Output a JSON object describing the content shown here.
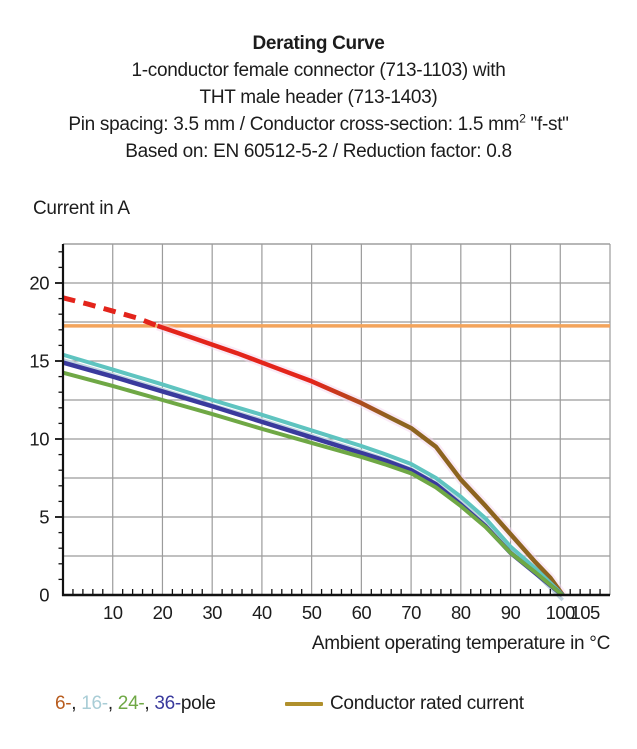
{
  "title": {
    "line1": "Derating Curve",
    "line2": "1-conductor female connector (713-1103) with",
    "line3": "THT male header (713-1403)",
    "line4_pre": "Pin spacing: 3.5 mm / Conductor cross-section: 1.5 mm",
    "line4_sup": "2",
    "line4_post": " \"f-st\"",
    "line5": "Based on: EN 60512-5-2 / Reduction factor: 0.8"
  },
  "axes": {
    "y_title": "Current in A",
    "x_title": "Ambient operating temperature in °C",
    "x_tick_labels": [
      10,
      20,
      30,
      40,
      50,
      60,
      70,
      80,
      90,
      100,
      105
    ],
    "y_tick_labels": [
      0,
      5,
      10,
      15,
      20
    ]
  },
  "legend": {
    "pole_segments": [
      {
        "text": "6-",
        "color": "#b85c1e"
      },
      {
        "text": ", ",
        "color": "#1c1c1c"
      },
      {
        "text": "16-",
        "color": "#a9cdd6"
      },
      {
        "text": ", ",
        "color": "#1c1c1c"
      },
      {
        "text": "24-",
        "color": "#6fa845"
      },
      {
        "text": ", ",
        "color": "#1c1c1c"
      },
      {
        "text": "36-",
        "color": "#3a3a9d"
      },
      {
        "text": "pole",
        "color": "#1c1c1c"
      }
    ],
    "rated_label": "Conductor rated current",
    "rated_color": "#b0902c"
  },
  "chart_data": {
    "type": "line",
    "title": "Derating Curve",
    "xlabel": "Ambient operating temperature in °C",
    "ylabel": "Current in A",
    "xlim": [
      0,
      110
    ],
    "ylim": [
      0,
      22.5
    ],
    "x_grid_step": 10,
    "y_grid_step": 2.5,
    "grid": true,
    "legend_position": "bottom",
    "series": [
      {
        "name": "Conductor rated current",
        "color": "#f3a45c",
        "style": "solid",
        "width": 3.5,
        "points": [
          [
            0,
            17.25
          ],
          [
            110,
            17.25
          ]
        ]
      },
      {
        "name": "6-pole theoretical (above rated current)",
        "color": "#e3241b",
        "style": "dashed",
        "width": 5,
        "points": [
          [
            0,
            19.05
          ],
          [
            5,
            18.65
          ],
          [
            10,
            18.2
          ],
          [
            15,
            17.75
          ],
          [
            19,
            17.25
          ]
        ]
      },
      {
        "name": "6-pole",
        "color": "#e3241b",
        "color_end": "#8d6420",
        "style": "solid",
        "width": 4.5,
        "points": [
          [
            19,
            17.25
          ],
          [
            25,
            16.6
          ],
          [
            30,
            16.05
          ],
          [
            35,
            15.5
          ],
          [
            40,
            14.9
          ],
          [
            45,
            14.3
          ],
          [
            50,
            13.7
          ],
          [
            55,
            13.0
          ],
          [
            60,
            12.3
          ],
          [
            65,
            11.5
          ],
          [
            70,
            10.7
          ],
          [
            75,
            9.5
          ],
          [
            80,
            7.4
          ],
          [
            85,
            5.7
          ],
          [
            90,
            3.9
          ],
          [
            95,
            2.1
          ],
          [
            98,
            1.1
          ],
          [
            100.5,
            0
          ]
        ]
      },
      {
        "name": "16-pole",
        "color": "#5fc4c0",
        "style": "solid",
        "width": 4,
        "shadow_color": "#c2d4df",
        "points": [
          [
            0,
            15.4
          ],
          [
            10,
            14.45
          ],
          [
            20,
            13.5
          ],
          [
            30,
            12.5
          ],
          [
            40,
            11.55
          ],
          [
            50,
            10.55
          ],
          [
            60,
            9.55
          ],
          [
            65,
            9.0
          ],
          [
            70,
            8.4
          ],
          [
            75,
            7.5
          ],
          [
            80,
            6.3
          ],
          [
            85,
            4.9
          ],
          [
            90,
            3.1
          ],
          [
            95,
            1.7
          ],
          [
            100.5,
            0
          ]
        ]
      },
      {
        "name": "36-pole",
        "color": "#3a3a9d",
        "style": "solid",
        "width": 4.5,
        "points": [
          [
            0,
            14.9
          ],
          [
            10,
            14.0
          ],
          [
            20,
            13.05
          ],
          [
            30,
            12.1
          ],
          [
            40,
            11.1
          ],
          [
            50,
            10.1
          ],
          [
            60,
            9.1
          ],
          [
            65,
            8.6
          ],
          [
            70,
            8.0
          ],
          [
            75,
            7.1
          ],
          [
            80,
            5.8
          ],
          [
            85,
            4.4
          ],
          [
            90,
            2.7
          ],
          [
            95,
            1.4
          ],
          [
            100.4,
            0
          ]
        ]
      },
      {
        "name": "24-pole",
        "color": "#6fa845",
        "style": "solid",
        "width": 4,
        "points": [
          [
            0,
            14.25
          ],
          [
            10,
            13.4
          ],
          [
            20,
            12.5
          ],
          [
            30,
            11.6
          ],
          [
            40,
            10.65
          ],
          [
            50,
            9.75
          ],
          [
            60,
            8.85
          ],
          [
            65,
            8.35
          ],
          [
            70,
            7.8
          ],
          [
            75,
            6.9
          ],
          [
            80,
            5.7
          ],
          [
            85,
            4.35
          ],
          [
            90,
            2.7
          ],
          [
            95,
            1.45
          ],
          [
            100.4,
            0
          ]
        ]
      }
    ]
  }
}
